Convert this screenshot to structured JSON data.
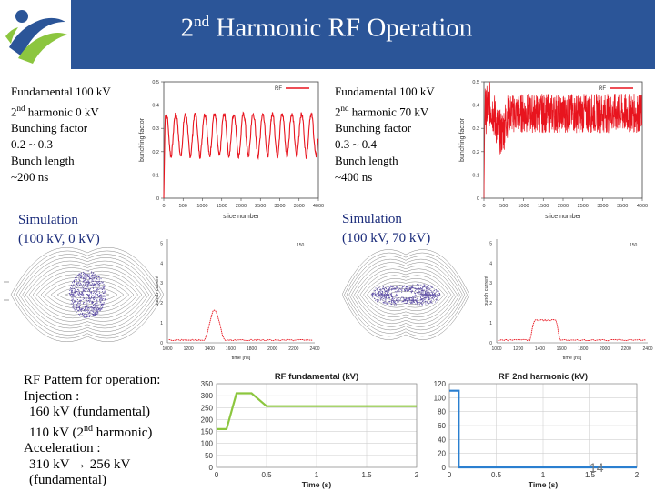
{
  "slide": {
    "title_main": "2",
    "title_sup": "nd",
    "title_rest": " Harmonic RF Operation",
    "page_number": "14"
  },
  "left_panel": {
    "fund": "Fundamental 100 kV",
    "h2_pre": "2",
    "h2_sup": "nd",
    "h2_rest": " harmonic  0 kV",
    "bf_label": "Bunching  factor",
    "bf_value": "0.2 ~ 0.3",
    "bl_label": "Bunch length",
    "bl_value": "~200 ns",
    "sim_label": "Simulation",
    "sim_params": "(100 kV, 0 kV)"
  },
  "right_panel": {
    "fund": "Fundamental 100 kV",
    "h2_pre": "2",
    "h2_sup": "nd",
    "h2_rest": " harmonic 70 kV",
    "bf_label": "Bunching  factor",
    "bf_value": "0.3 ~ 0.4",
    "bl_label": "Bunch length",
    "bl_value": "~400 ns",
    "sim_label": "Simulation",
    "sim_params": "(100 kV, 70 kV)"
  },
  "pattern": {
    "line1": "RF Pattern for operation:",
    "line2": "Injection :",
    "line3": "160 kV (fundamental)",
    "line4_pre": "110 kV (2",
    "line4_sup": "nd",
    "line4_post": " harmonic)",
    "line5": "Acceleration :",
    "line6": "310 kV → 256 kV",
    "line7": "(fundamental)"
  },
  "chart_data": [
    {
      "type": "line",
      "title": "",
      "legend": "RF",
      "xlabel": "slice number",
      "ylabel": "bunching factor",
      "xlim": [
        0,
        4000
      ],
      "ylim": [
        0,
        0.5
      ],
      "x_ticks": [
        "0",
        "500",
        "1000",
        "1500",
        "2000",
        "2500",
        "3000",
        "3500",
        "4000"
      ],
      "y_ticks": [
        "0",
        "0.1",
        "0.2",
        "0.3",
        "0.4",
        "0.5"
      ],
      "series": [
        {
          "name": "RF",
          "description": "periodic oscillation",
          "min": 0.18,
          "max": 0.36,
          "period_slices": 250
        }
      ]
    },
    {
      "type": "line",
      "title": "",
      "legend": "RF",
      "xlabel": "slice number",
      "ylabel": "bunching factor",
      "xlim": [
        0,
        4000
      ],
      "ylim": [
        0,
        0.5
      ],
      "x_ticks": [
        "0",
        "500",
        "1000",
        "1500",
        "2000",
        "2500",
        "3000",
        "3500",
        "4000"
      ],
      "y_ticks": [
        "0",
        "0.1",
        "0.2",
        "0.3",
        "0.4",
        "0.5"
      ],
      "series": [
        {
          "name": "RF",
          "description": "noisy band",
          "min": 0.28,
          "max": 0.45
        }
      ]
    },
    {
      "type": "line",
      "title": "",
      "legend": "150",
      "xlabel": "time [ns]",
      "ylabel": "bunch current",
      "x_ticks": [
        "1000",
        "1200",
        "1400",
        "1600",
        "1800",
        "2000",
        "2200",
        "2400"
      ],
      "y_ticks": [
        "0",
        "1",
        "2",
        "3",
        "4",
        "5"
      ],
      "peak_value": 1.5
    },
    {
      "type": "line",
      "title": "",
      "legend": "150",
      "xlabel": "time [ns]",
      "ylabel": "bunch current",
      "x_ticks": [
        "1000",
        "1200",
        "1400",
        "1600",
        "1800",
        "2000",
        "2200",
        "2400"
      ],
      "y_ticks": [
        "0",
        "1",
        "2",
        "3",
        "4",
        "5"
      ],
      "peak_value": 1.0
    },
    {
      "type": "line",
      "title": "RF fundamental (kV)",
      "xlabel": "Time (s)",
      "ylabel": "",
      "xlim": [
        0,
        2
      ],
      "ylim": [
        0,
        350
      ],
      "x_ticks": [
        "0",
        "0.5",
        "1",
        "1.5",
        "2"
      ],
      "y_ticks": [
        "0",
        "50",
        "100",
        "150",
        "200",
        "250",
        "300",
        "350"
      ],
      "series": [
        {
          "name": "RF fundamental",
          "x": [
            0,
            0.1,
            0.2,
            0.35,
            0.5,
            2
          ],
          "y": [
            160,
            160,
            310,
            310,
            256,
            256
          ]
        }
      ]
    },
    {
      "type": "line",
      "title": "RF 2nd harmonic (kV)",
      "xlabel": "Time (s)",
      "ylabel": "",
      "xlim": [
        0,
        2
      ],
      "ylim": [
        0,
        120
      ],
      "x_ticks": [
        "0",
        "0.5",
        "1",
        "1.5",
        "2"
      ],
      "y_ticks": [
        "0",
        "20",
        "40",
        "60",
        "80",
        "100",
        "120"
      ],
      "series": [
        {
          "name": "RF 2nd harmonic",
          "x": [
            0,
            0.1,
            0.1,
            2
          ],
          "y": [
            110,
            110,
            0,
            0
          ]
        }
      ]
    }
  ],
  "colors": {
    "header": "#2b5598",
    "trace_red": "#e8141e",
    "line_green": "#8cc63f",
    "line_blue": "#2a7fd0",
    "phase_purple": "#4b3a9c"
  }
}
